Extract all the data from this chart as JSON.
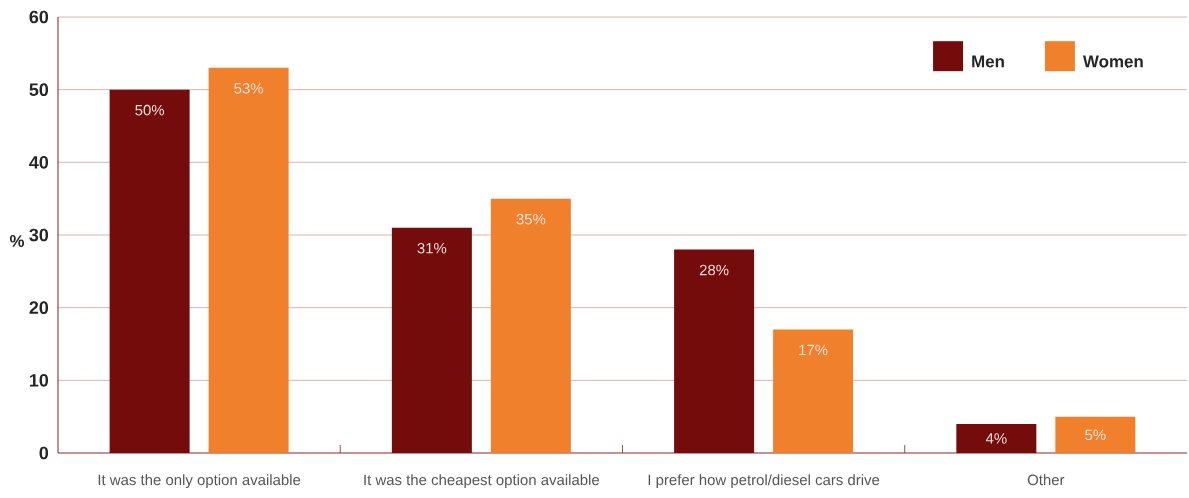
{
  "chart_data": {
    "type": "bar",
    "ylabel": "%",
    "categories": [
      "It was the only option available",
      "It was the cheapest option available",
      "I prefer how petrol/diesel cars drive",
      "Other"
    ],
    "series": [
      {
        "name": "Men",
        "color": "#730c0b",
        "values": [
          50,
          31,
          28,
          4
        ],
        "value_labels": [
          "50%",
          "31%",
          "28%",
          "4%"
        ]
      },
      {
        "name": "Women",
        "color": "#f1802d",
        "values": [
          53,
          35,
          17,
          5
        ],
        "value_labels": [
          "53%",
          "35%",
          "17%",
          "5%"
        ]
      }
    ],
    "ylim": [
      0,
      60
    ],
    "yticks": [
      0,
      10,
      20,
      30,
      40,
      50,
      60
    ],
    "grid": "y",
    "legend": "top right"
  }
}
